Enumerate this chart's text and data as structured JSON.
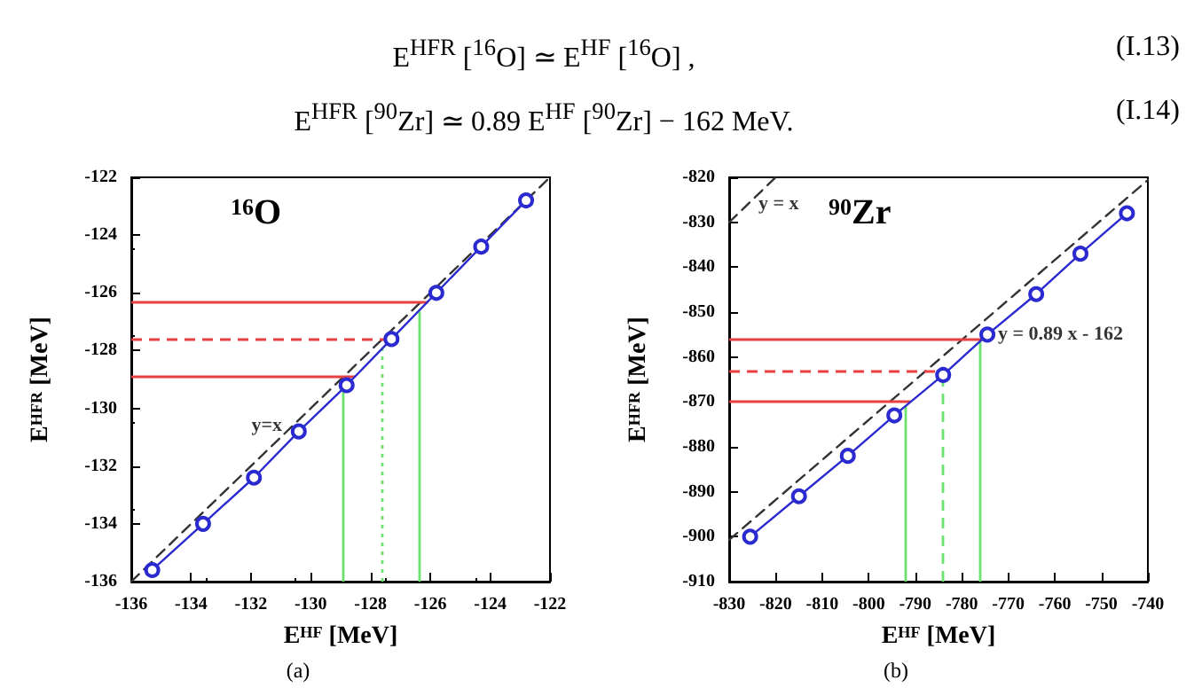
{
  "chart_data": [
    {
      "type": "line",
      "title": "$^{16}$O",
      "xlabel": "E$^{HF}$ [MeV]",
      "ylabel": "E$^{HFR}$ [MeV]",
      "annotations": [
        "E$^{HFR}$ [$^{16}$O]  ≃  E$^{HF}$ [$^{16}$O] ,",
        "(I.13)",
        "E$^{HFR}$ [$^{90}$Zr]  ≃  0.89 E$^{HF}$ [$^{90}$Zr] − 162 MeV.",
        "(I.14)",
        "(a)",
        {
          "text": "y=x",
          "x": -130.6,
          "y": -130.6
        }
      ],
      "x": [
        -135.3,
        -133.6,
        -131.9,
        -130.4,
        -128.8,
        -127.3,
        -125.8,
        -124.3,
        -122.8
      ],
      "series": [
        {
          "color": "#2a2ad0",
          "marker": "circle",
          "line_style": "solid",
          "values": [
            -135.6,
            -134.0,
            -132.4,
            -130.8,
            -129.2,
            -127.6,
            -126.0,
            -124.4,
            -122.8
          ]
        },
        {
          "color": "#333333",
          "marker": "none",
          "line_style": "dashed",
          "x": [
            -136,
            -122
          ],
          "values": [
            -136,
            -122
          ]
        }
      ],
      "ref_lines": [
        {
          "axis": "y",
          "value": -126.3,
          "color": "#e84040",
          "line_style": "solid"
        },
        {
          "axis": "y",
          "value": -127.6,
          "color": "#e84040",
          "line_style": "dashed"
        },
        {
          "axis": "y",
          "value": -128.9,
          "color": "#e84040",
          "line_style": "solid"
        },
        {
          "axis": "x",
          "value": -128.9,
          "color": "#6ee06e",
          "line_style": "solid"
        },
        {
          "axis": "x",
          "value": -127.6,
          "color": "#6ee06e",
          "line_style": "dotted"
        },
        {
          "axis": "x",
          "value": -126.4,
          "color": "#6ee06e",
          "line_style": "solid"
        }
      ],
      "xlim": [
        -136,
        -122
      ],
      "xticks": [
        -136,
        -134,
        -132,
        -130,
        -128,
        -126,
        -124,
        -122
      ],
      "ylim": [
        -136,
        -122
      ],
      "yticks": [
        -136,
        -134,
        -132,
        -130,
        -128,
        -126,
        -124,
        -122
      ]
    },
    {
      "type": "line",
      "title": "$^{90}$Zr",
      "xlabel": "E$^{HF}$ [MeV]",
      "ylabel": "E$^{HFR}$ [MeV]",
      "annotations": [
        "(b)",
        {
          "text": "y = x",
          "x": -826,
          "y": -826
        },
        {
          "text": "y = 0.89 x - 162",
          "x": -774.5,
          "y": -855
        }
      ],
      "x": [
        -825.5,
        -815,
        -804.5,
        -794.5,
        -784,
        -774.5,
        -764,
        -754.5,
        -744.5
      ],
      "series": [
        {
          "color": "#2a2ad0",
          "marker": "circle",
          "line_style": "solid",
          "values": [
            -900,
            -891,
            -882,
            -873,
            -864,
            -855,
            -846,
            -837,
            -828
          ]
        },
        {
          "color": "#333333",
          "marker": "none",
          "line_style": "dashed",
          "x": [
            -830,
            -820
          ],
          "values": [
            -830,
            -820
          ]
        },
        {
          "color": "#333333",
          "marker": "none",
          "line_style": "dashed",
          "x": [
            -830,
            -740
          ],
          "values": [
            -900.7,
            -820.6
          ]
        }
      ],
      "ref_lines": [
        {
          "axis": "y",
          "value": -856,
          "color": "#e84040",
          "line_style": "solid"
        },
        {
          "axis": "y",
          "value": -863,
          "color": "#e84040",
          "line_style": "dashed"
        },
        {
          "axis": "y",
          "value": -870,
          "color": "#e84040",
          "line_style": "solid"
        },
        {
          "axis": "x",
          "value": -792,
          "color": "#6ee06e",
          "line_style": "solid"
        },
        {
          "axis": "x",
          "value": -784,
          "color": "#6ee06e",
          "line_style": "dashed"
        },
        {
          "axis": "x",
          "value": -776,
          "color": "#6ee06e",
          "line_style": "solid"
        }
      ],
      "xlim": [
        -830,
        -740
      ],
      "xticks": [
        -830,
        -820,
        -810,
        -800,
        -790,
        -780,
        -770,
        -760,
        -750,
        -740
      ],
      "ylim": [
        -910,
        -820
      ],
      "yticks": [
        -910,
        -900,
        -890,
        -880,
        -870,
        -860,
        -850,
        -840,
        -830,
        -820
      ]
    }
  ]
}
